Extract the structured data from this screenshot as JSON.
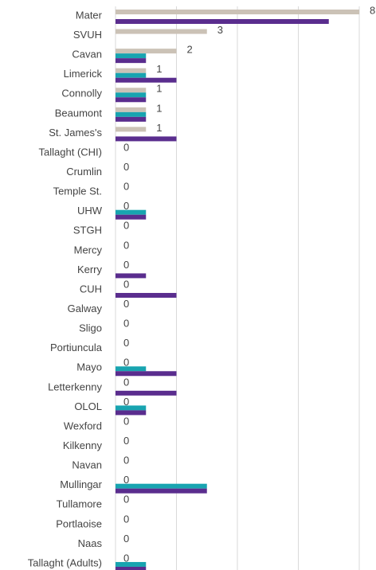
{
  "chart_data": {
    "type": "bar",
    "orientation": "horizontal",
    "categories": [
      "Mater",
      "SVUH",
      "Cavan",
      "Limerick",
      "Connolly",
      "Beaumont",
      "St. James's",
      "Tallaght (CHI)",
      "Crumlin",
      "Temple St.",
      "UHW",
      "STGH",
      "Mercy",
      "Kerry",
      "CUH",
      "Galway",
      "Sligo",
      "Portiuncula",
      "Mayo",
      "Letterkenny",
      "OLOL",
      "Wexford",
      "Kilkenny",
      "Navan",
      "Mullingar",
      "Tullamore",
      "Portlaoise",
      "Naas",
      "Tallaght (Adults)"
    ],
    "series": [
      {
        "color": "#cbc2b6",
        "labels": true,
        "values": [
          8,
          3,
          2,
          1,
          1,
          1,
          1,
          0,
          0,
          0,
          0,
          0,
          0,
          0,
          0,
          0,
          0,
          0,
          0,
          0,
          0,
          0,
          0,
          0,
          0,
          0,
          0,
          0,
          0
        ]
      },
      {
        "color": "#18a4b0",
        "values": [
          0,
          0,
          1,
          1,
          1,
          1,
          0,
          0,
          0,
          0,
          1,
          0,
          0,
          0,
          0,
          0,
          0,
          0,
          1,
          0,
          1,
          0,
          0,
          0,
          3,
          0,
          0,
          0,
          1
        ]
      },
      {
        "color": "#5a2d8e",
        "values": [
          7,
          0,
          1,
          2,
          1,
          1,
          2,
          0,
          0,
          0,
          1,
          0,
          0,
          1,
          2,
          0,
          0,
          0,
          2,
          2,
          1,
          0,
          0,
          0,
          3,
          0,
          0,
          0,
          1
        ]
      }
    ],
    "xlim": [
      0,
      8
    ],
    "xticks": [
      0,
      2,
      4,
      6,
      8
    ],
    "grid": true
  }
}
